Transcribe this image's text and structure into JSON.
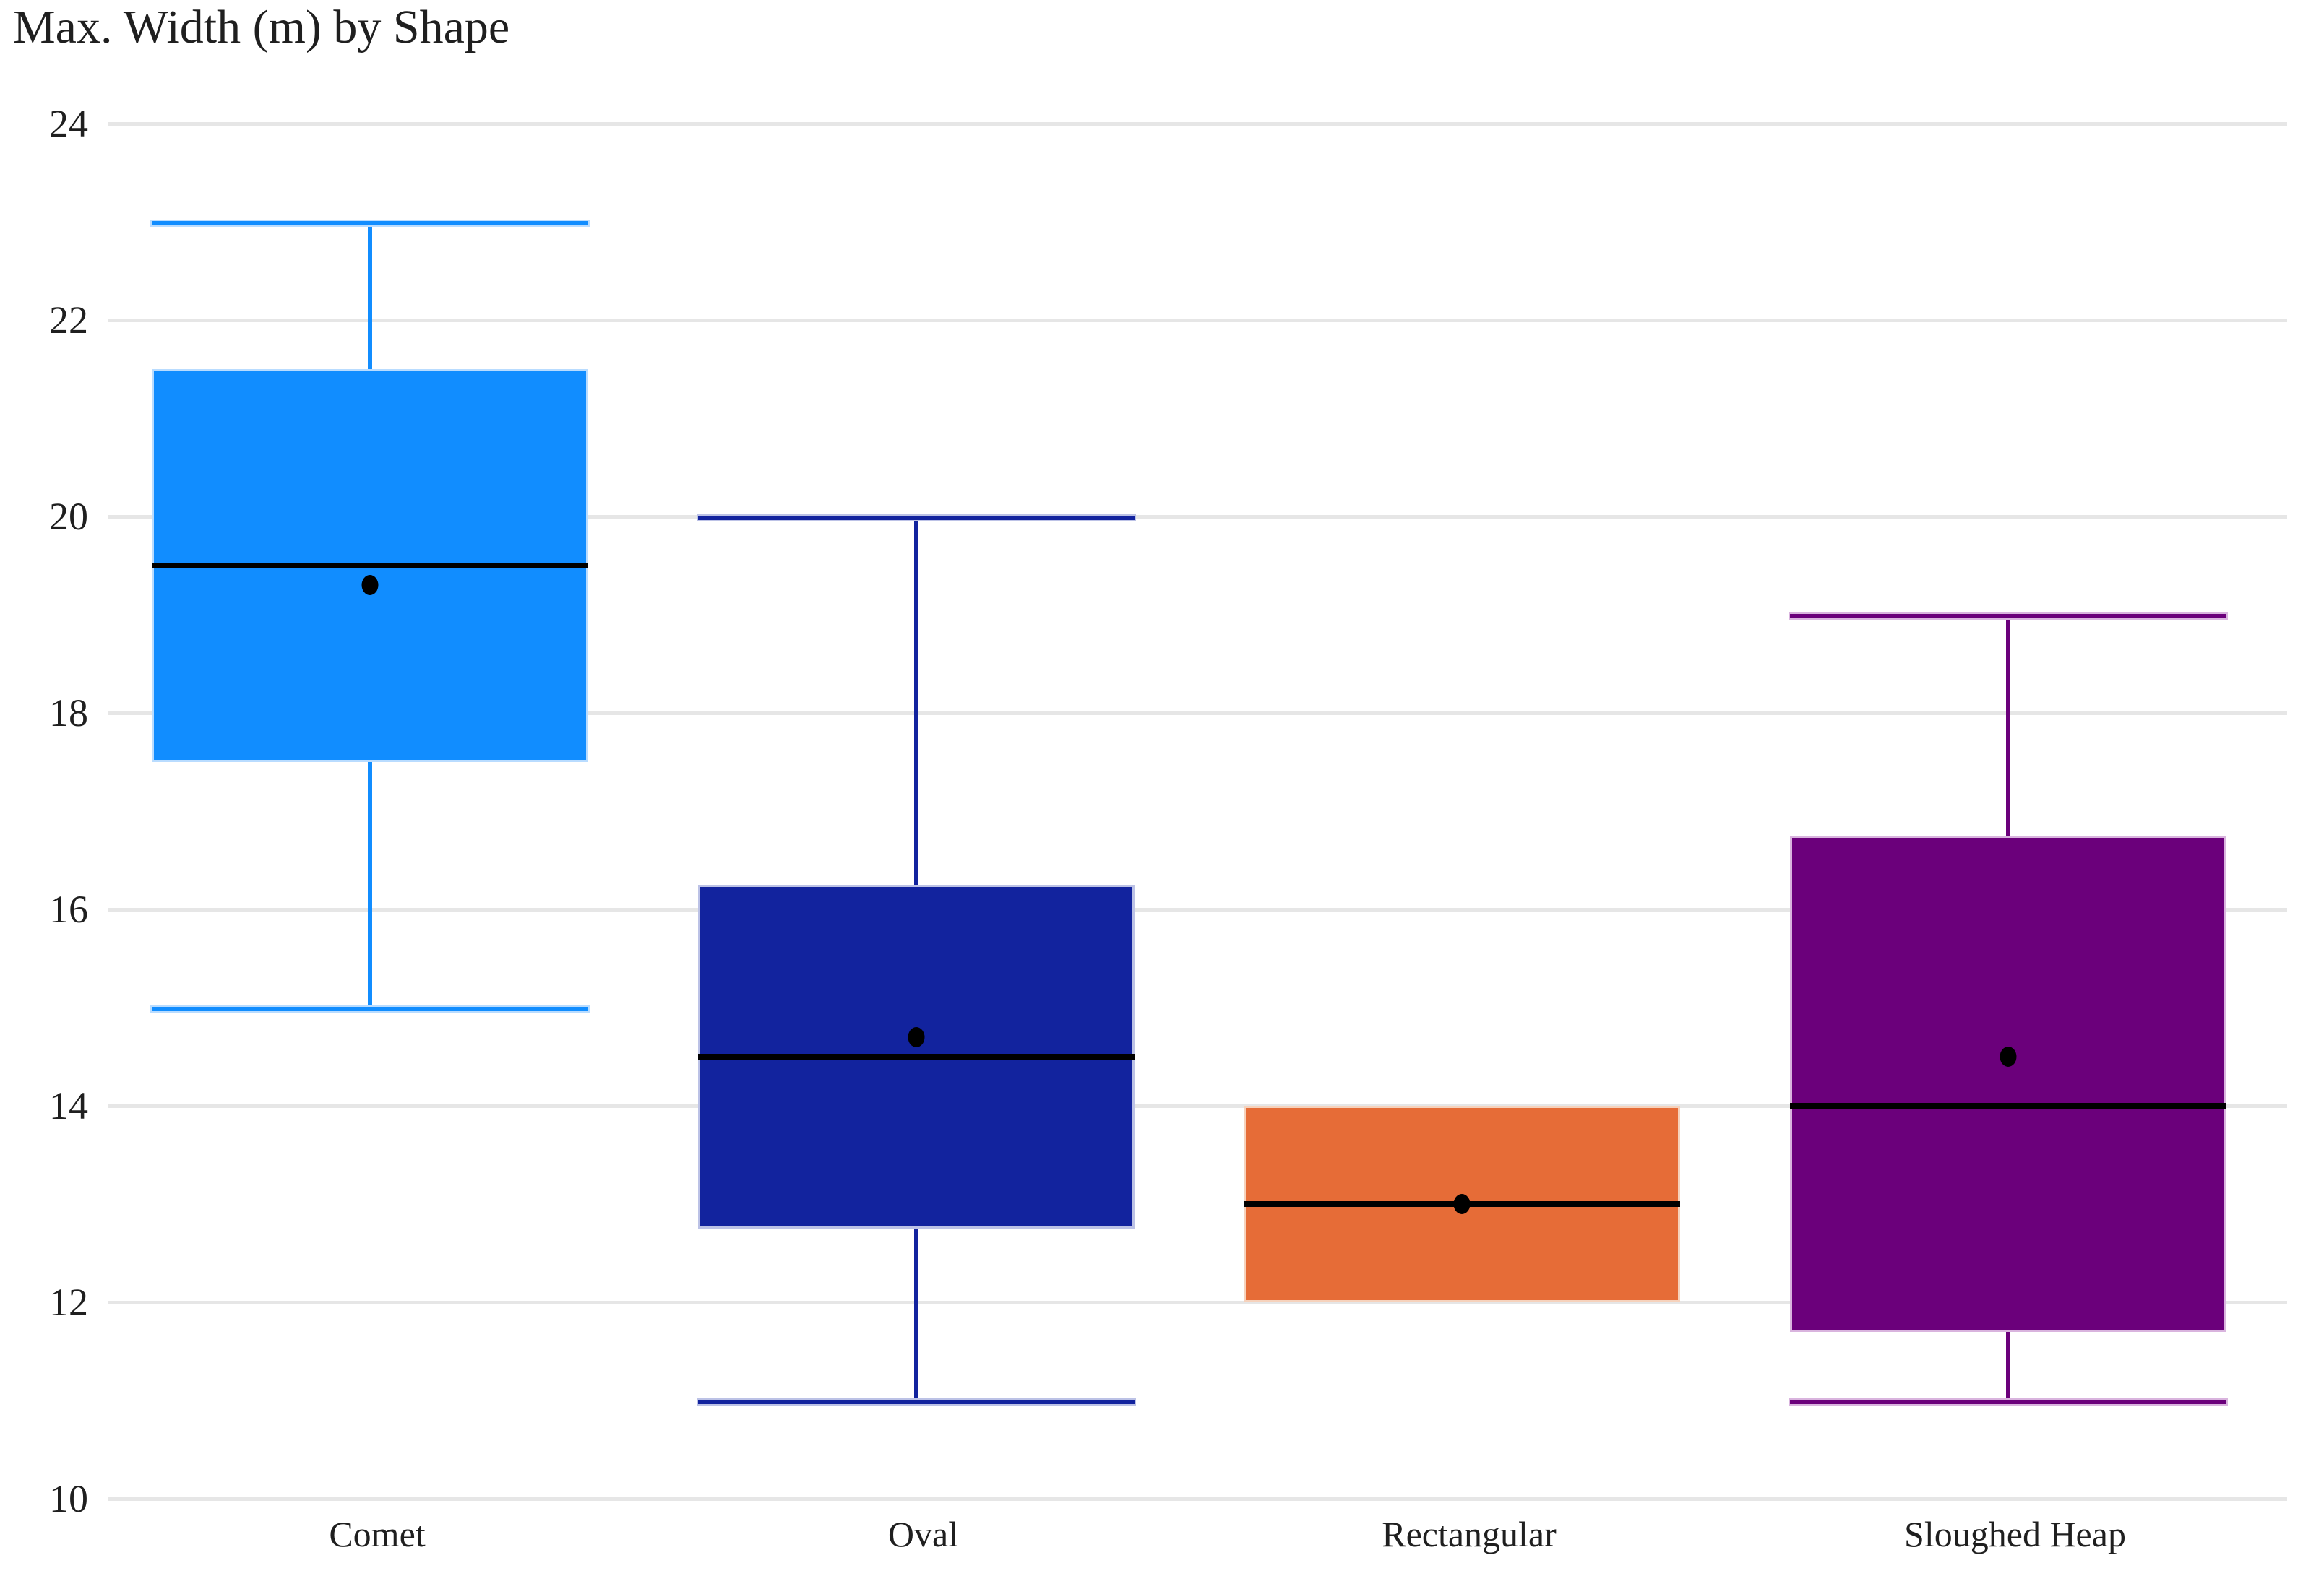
{
  "chart_data": {
    "type": "box",
    "title": "Max. Width (m) by Shape",
    "categories": [
      "Comet",
      "Oval",
      "Rectangular",
      "Sloughed Heap"
    ],
    "y_axis": {
      "min": 10,
      "max": 24,
      "tick_step": 2,
      "ticks": [
        24,
        22,
        20,
        18,
        16,
        14,
        12,
        10
      ],
      "tick_labels": [
        "24",
        "22",
        "20",
        "18",
        "16",
        "14",
        "12",
        "10"
      ]
    },
    "grid": "horizontal-only",
    "legend": "none",
    "series": [
      {
        "name": "Comet",
        "color": "#118DFF",
        "light_border": "#b9dcff",
        "min": 15,
        "q1": 17.5,
        "median": 19.5,
        "q3": 21.5,
        "max": 23,
        "mean": 19.3
      },
      {
        "name": "Oval",
        "color": "#12239E",
        "light_border": "#bcc2e6",
        "min": 11,
        "q1": 12.75,
        "median": 14.5,
        "q3": 16.25,
        "max": 20,
        "mean": 14.7
      },
      {
        "name": "Rectangular",
        "color": "#E66C37",
        "light_border": "#f6d2bc",
        "min": 12,
        "q1": 12,
        "median": 13,
        "q3": 14,
        "max": 14,
        "mean": 13
      },
      {
        "name": "Sloughed Heap",
        "color": "#6B007B",
        "light_border": "#d9b4de",
        "min": 11,
        "q1": 11.7,
        "median": 14,
        "q3": 16.75,
        "max": 19,
        "mean": 14.5
      }
    ],
    "style": {
      "gridline_color": "#e6e6e6",
      "median_color": "#000000",
      "mean_dot_color": "#000000",
      "text_color": "#1f1f1f",
      "background": "#ffffff"
    }
  }
}
